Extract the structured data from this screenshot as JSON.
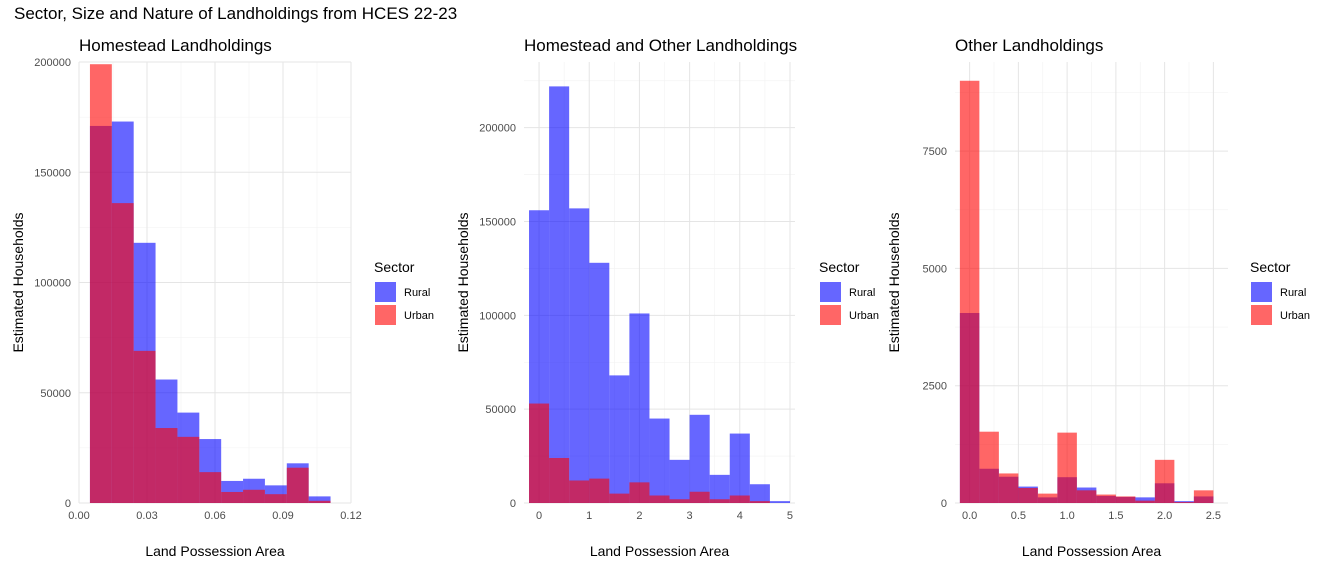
{
  "title": "Sector, Size and Nature of Landholdings from HCES 22-23",
  "colors": {
    "rural": "#0000ff",
    "urban": "#ff0000",
    "grid_major": "#e5e5e5",
    "grid_minor": "#f2f2f2"
  },
  "chart_data": [
    {
      "type": "bar",
      "title": "Homestead Landholdings",
      "xlabel": "Land Possession Area",
      "ylabel": "Estimated Households",
      "xlim": [
        0,
        0.12
      ],
      "ylim": [
        0,
        200000
      ],
      "xticks": [
        0.0,
        0.03,
        0.06,
        0.09,
        0.12
      ],
      "xtick_labels": [
        "0.00",
        "0.03",
        "0.06",
        "0.09",
        "0.12"
      ],
      "yticks": [
        0,
        50000,
        100000,
        150000,
        200000
      ],
      "ytick_labels": [
        "0",
        "50000",
        "100000",
        "150000",
        "200000"
      ],
      "bin_width": 0.00965,
      "bin_centers": [
        0.00965,
        0.0193,
        0.02895,
        0.0386,
        0.04825,
        0.0579,
        0.06755,
        0.0772,
        0.08685,
        0.0965,
        0.10615
      ],
      "series": [
        {
          "name": "Rural",
          "values": [
            171000,
            173000,
            118000,
            56000,
            41000,
            29000,
            10000,
            11000,
            8000,
            18000,
            3000
          ]
        },
        {
          "name": "Urban",
          "values": [
            199000,
            136000,
            69000,
            34000,
            30000,
            14000,
            5000,
            6000,
            4000,
            16000,
            1000
          ]
        }
      ],
      "legend": {
        "title": "Sector",
        "entries": [
          "Rural",
          "Urban"
        ],
        "position": "right"
      }
    },
    {
      "type": "bar",
      "title": "Homestead and Other Landholdings",
      "xlabel": "Land Possession Area",
      "ylabel": "Estimated Households",
      "xlim": [
        -0.3,
        5.1
      ],
      "ylim": [
        0,
        235000
      ],
      "xticks": [
        0,
        1,
        2,
        3,
        4,
        5
      ],
      "xtick_labels": [
        "0",
        "1",
        "2",
        "3",
        "4",
        "5"
      ],
      "yticks": [
        0,
        50000,
        100000,
        150000,
        200000
      ],
      "ytick_labels": [
        "0",
        "50000",
        "100000",
        "150000",
        "200000"
      ],
      "bin_width": 0.4,
      "bin_centers": [
        0.0,
        0.4,
        0.8,
        1.2,
        1.6,
        2.0,
        2.4,
        2.8,
        3.2,
        3.6,
        4.0,
        4.4,
        4.8
      ],
      "series": [
        {
          "name": "Rural",
          "values": [
            156000,
            222000,
            157000,
            128000,
            68000,
            101000,
            45000,
            23000,
            47000,
            15000,
            37000,
            10000,
            1000
          ]
        },
        {
          "name": "Urban",
          "values": [
            53000,
            24000,
            12000,
            13000,
            5000,
            11000,
            4000,
            2000,
            6000,
            2000,
            4000,
            1000,
            0
          ]
        }
      ],
      "legend": {
        "title": "Sector",
        "entries": [
          "Rural",
          "Urban"
        ],
        "position": "right"
      }
    },
    {
      "type": "bar",
      "title": "Other Landholdings",
      "xlabel": "Land Possession Area",
      "ylabel": "Estimated Households",
      "xlim": [
        -0.15,
        2.65
      ],
      "ylim": [
        0,
        9400
      ],
      "xticks": [
        0.0,
        0.5,
        1.0,
        1.5,
        2.0,
        2.5
      ],
      "xtick_labels": [
        "0.0",
        "0.5",
        "1.0",
        "1.5",
        "2.0",
        "2.5"
      ],
      "yticks": [
        0,
        2500,
        5000,
        7500
      ],
      "ytick_labels": [
        "0",
        "2500",
        "5000",
        "7500"
      ],
      "bin_width": 0.2,
      "bin_centers": [
        0.0,
        0.2,
        0.4,
        0.6,
        0.8,
        1.0,
        1.2,
        1.4,
        1.6,
        1.8,
        2.0,
        2.2,
        2.4
      ],
      "series": [
        {
          "name": "Rural",
          "values": [
            4050,
            730,
            560,
            350,
            120,
            550,
            330,
            150,
            130,
            120,
            420,
            40,
            140
          ]
        },
        {
          "name": "Urban",
          "values": [
            9000,
            1520,
            630,
            320,
            200,
            1500,
            270,
            180,
            140,
            50,
            920,
            20,
            270
          ]
        }
      ],
      "legend": {
        "title": "Sector",
        "entries": [
          "Rural",
          "Urban"
        ],
        "position": "right"
      }
    }
  ]
}
